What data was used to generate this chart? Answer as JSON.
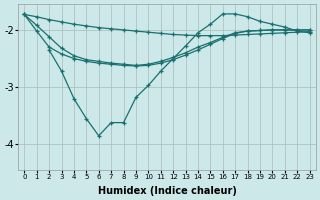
{
  "xlabel": "Humidex (Indice chaleur)",
  "bg_color": "#cce8e8",
  "grid_color": "#aabbbb",
  "line_color": "#1a7070",
  "xlim": [
    -0.5,
    23.5
  ],
  "ylim": [
    -4.45,
    -1.55
  ],
  "yticks": [
    -4,
    -3,
    -2
  ],
  "xticks": [
    0,
    1,
    2,
    3,
    4,
    5,
    6,
    7,
    8,
    9,
    10,
    11,
    12,
    13,
    14,
    15,
    16,
    17,
    18,
    19,
    20,
    21,
    22,
    23
  ],
  "lines": [
    {
      "x": [
        0,
        1,
        2,
        3,
        4,
        5,
        6,
        7,
        8,
        9,
        10,
        11,
        12,
        13,
        14,
        15,
        16,
        17,
        18,
        19,
        20,
        21,
        22,
        23
      ],
      "y": [
        -1.73,
        -1.77,
        -1.82,
        -1.86,
        -1.9,
        -1.93,
        -1.96,
        -1.98,
        -2.0,
        -2.02,
        -2.04,
        -2.06,
        -2.08,
        -2.09,
        -2.1,
        -2.1,
        -2.1,
        -2.09,
        -2.08,
        -2.07,
        -2.06,
        -2.05,
        -2.04,
        -2.03
      ]
    },
    {
      "x": [
        0,
        1,
        2,
        3,
        4,
        5,
        6,
        7,
        8,
        9,
        10,
        11,
        12,
        13,
        14,
        15,
        16,
        17,
        18,
        19,
        20,
        21,
        22,
        23
      ],
      "y": [
        -1.73,
        -1.92,
        -2.12,
        -2.32,
        -2.45,
        -2.52,
        -2.55,
        -2.58,
        -2.6,
        -2.62,
        -2.6,
        -2.55,
        -2.48,
        -2.4,
        -2.3,
        -2.22,
        -2.13,
        -2.05,
        -2.02,
        -2.01,
        -2.0,
        -2.0,
        -2.0,
        -2.0
      ]
    },
    {
      "x": [
        2,
        3,
        4,
        5,
        6,
        7,
        8,
        9,
        10,
        11,
        12,
        13,
        14,
        15,
        16,
        17,
        18,
        19,
        20,
        21,
        22,
        23
      ],
      "y": [
        -2.35,
        -2.72,
        -3.2,
        -3.55,
        -3.85,
        -3.62,
        -3.62,
        -3.18,
        -2.97,
        -2.72,
        -2.5,
        -2.28,
        -2.05,
        -1.9,
        -1.72,
        -1.72,
        -1.77,
        -1.85,
        -1.9,
        -1.95,
        -2.02,
        -2.05
      ]
    },
    {
      "x": [
        0,
        1,
        2,
        3,
        4,
        5,
        6,
        7,
        8,
        9,
        10,
        11,
        12,
        13,
        14,
        15,
        16,
        17,
        18,
        19,
        20,
        21,
        22,
        23
      ],
      "y": [
        -1.73,
        -2.02,
        -2.3,
        -2.42,
        -2.5,
        -2.55,
        -2.58,
        -2.6,
        -2.62,
        -2.63,
        -2.62,
        -2.58,
        -2.52,
        -2.44,
        -2.35,
        -2.25,
        -2.15,
        -2.06,
        -2.02,
        -2.01,
        -2.0,
        -2.0,
        -2.0,
        -2.0
      ]
    }
  ]
}
